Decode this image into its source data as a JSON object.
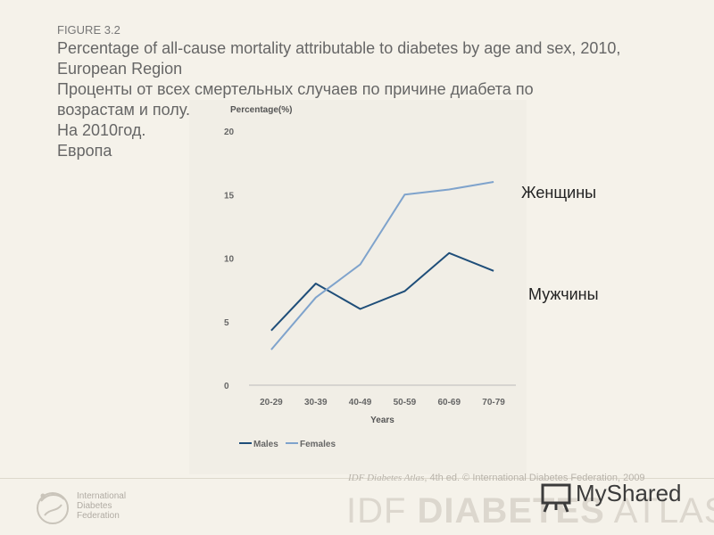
{
  "figure_label": "FIGURE 3.2",
  "title_en": "Percentage of all-cause mortality attributable to diabetes by age and sex, 2010, European Region",
  "title_ru_lines": [
    "Проценты от всех смертельных случаев по причине диабета по",
    "возрастам и полу.",
    "На 2010год.",
    "Европа"
  ],
  "annotations": {
    "females_ru": "Женщины",
    "males_ru": "Мужчины"
  },
  "footer": {
    "org_lines": [
      "International",
      "Diabetes",
      "Federation"
    ],
    "credit_italic": "IDF Diabetes Atlas",
    "credit_rest": ", 4th ed. © International Diabetes Federation, 2009",
    "brand_light": "IDF ",
    "brand_bold": "DIABETES",
    "brand_end": " ATLAS",
    "watermark": "MyShared"
  },
  "colors": {
    "males": "#1f4e79",
    "females": "#7fa3cc"
  },
  "chart_data": {
    "type": "line",
    "title": "",
    "ylabel": "Percentage(%)",
    "xlabel": "Years",
    "categories": [
      "20-29",
      "30-39",
      "40-49",
      "50-59",
      "60-69",
      "70-79"
    ],
    "yticks": [
      0,
      5,
      10,
      15,
      20
    ],
    "ylim": [
      0,
      20
    ],
    "legend_position": "bottom-left",
    "series": [
      {
        "name": "Males",
        "values": [
          4.3,
          8.0,
          6.0,
          7.4,
          10.4,
          9.0
        ]
      },
      {
        "name": "Females",
        "values": [
          2.8,
          6.9,
          9.5,
          15.0,
          15.4,
          16.0
        ]
      }
    ]
  }
}
